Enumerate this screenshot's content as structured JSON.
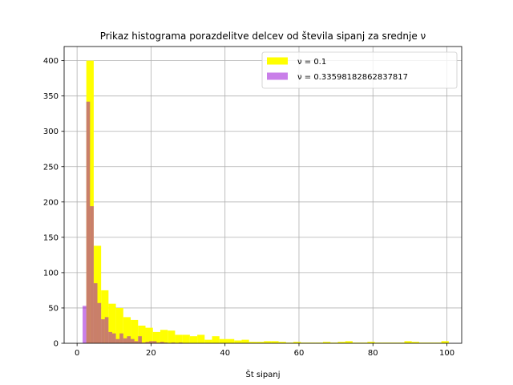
{
  "chart_data": {
    "type": "histogram",
    "title": "Prikaz histograma porazdelitve delcev od števila sipanj za srednje ν",
    "xlabel": "Št sipanj",
    "ylabel": "",
    "xlim": [
      -3.5,
      104
    ],
    "ylim": [
      0,
      420
    ],
    "xticks": [
      0,
      20,
      40,
      60,
      80,
      100
    ],
    "yticks": [
      0,
      50,
      100,
      150,
      200,
      250,
      300,
      350,
      400
    ],
    "grid": true,
    "legend_position": "upper right",
    "series": [
      {
        "name": "ν = 0.1",
        "color": "#ffff00",
        "opacity": 1.0,
        "bins": [
          [
            2.5,
            4.5,
            400
          ],
          [
            4.5,
            6.5,
            138
          ],
          [
            6.5,
            8.5,
            75
          ],
          [
            8.5,
            10.5,
            56
          ],
          [
            10.5,
            12.5,
            50
          ],
          [
            12.5,
            14.5,
            37
          ],
          [
            14.5,
            16.5,
            33
          ],
          [
            16.5,
            18.5,
            25
          ],
          [
            18.5,
            20.5,
            22
          ],
          [
            20.5,
            22.5,
            16
          ],
          [
            22.5,
            24.5,
            19
          ],
          [
            24.5,
            26.5,
            18
          ],
          [
            26.5,
            28.5,
            12
          ],
          [
            28.5,
            30.5,
            12
          ],
          [
            30.5,
            32.5,
            10
          ],
          [
            32.5,
            34.5,
            12
          ],
          [
            34.5,
            36.5,
            5
          ],
          [
            36.5,
            38.5,
            10
          ],
          [
            38.5,
            40.5,
            6
          ],
          [
            40.5,
            42.5,
            6
          ],
          [
            42.5,
            44.5,
            4
          ],
          [
            44.5,
            46.5,
            5
          ],
          [
            46.5,
            48.5,
            2
          ],
          [
            48.5,
            50.5,
            2
          ],
          [
            50.5,
            52.5,
            3
          ],
          [
            52.5,
            54.5,
            3
          ],
          [
            54.5,
            56.5,
            2
          ],
          [
            56.5,
            58.5,
            1
          ],
          [
            58.5,
            60.5,
            2
          ],
          [
            60.5,
            62.5,
            1
          ],
          [
            62.5,
            64.5,
            1
          ],
          [
            64.5,
            66.5,
            1
          ],
          [
            66.5,
            68.5,
            2
          ],
          [
            68.5,
            70.5,
            1
          ],
          [
            70.5,
            72.5,
            2
          ],
          [
            72.5,
            74.5,
            3
          ],
          [
            74.5,
            76.5,
            1
          ],
          [
            76.5,
            78.5,
            1
          ],
          [
            78.5,
            80.5,
            2
          ],
          [
            80.5,
            82.5,
            1
          ],
          [
            82.5,
            84.5,
            1
          ],
          [
            84.5,
            86.5,
            1
          ],
          [
            86.5,
            88.5,
            1
          ],
          [
            88.5,
            90.5,
            3
          ],
          [
            90.5,
            92.5,
            2
          ],
          [
            92.5,
            94.5,
            1
          ],
          [
            94.5,
            96.5,
            1
          ],
          [
            96.5,
            98.5,
            1
          ],
          [
            98.5,
            100.5,
            3
          ]
        ]
      },
      {
        "name": "ν = 0.33598182862837817",
        "color": "#9400d3",
        "opacity": 0.5,
        "bins": [
          [
            1.5,
            2.5,
            53
          ],
          [
            2.5,
            3.5,
            342
          ],
          [
            3.5,
            4.5,
            194
          ],
          [
            4.5,
            5.5,
            85
          ],
          [
            5.5,
            6.5,
            57
          ],
          [
            6.5,
            7.5,
            34
          ],
          [
            7.5,
            8.5,
            37
          ],
          [
            8.5,
            9.5,
            16
          ],
          [
            9.5,
            10.5,
            14
          ],
          [
            10.5,
            11.5,
            6
          ],
          [
            11.5,
            12.5,
            14
          ],
          [
            12.5,
            13.5,
            7
          ],
          [
            13.5,
            14.5,
            10
          ],
          [
            14.5,
            15.5,
            6
          ],
          [
            15.5,
            16.5,
            3
          ],
          [
            16.5,
            17.5,
            10
          ],
          [
            17.5,
            18.5,
            1
          ],
          [
            18.5,
            19.5,
            2
          ],
          [
            19.5,
            20.5,
            3
          ],
          [
            20.5,
            21.5,
            3
          ],
          [
            21.5,
            22.5,
            1
          ],
          [
            22.5,
            23.5,
            2
          ],
          [
            23.5,
            24.5,
            1
          ],
          [
            25.5,
            26.5,
            1
          ],
          [
            27.5,
            28.5,
            1
          ]
        ]
      }
    ]
  }
}
